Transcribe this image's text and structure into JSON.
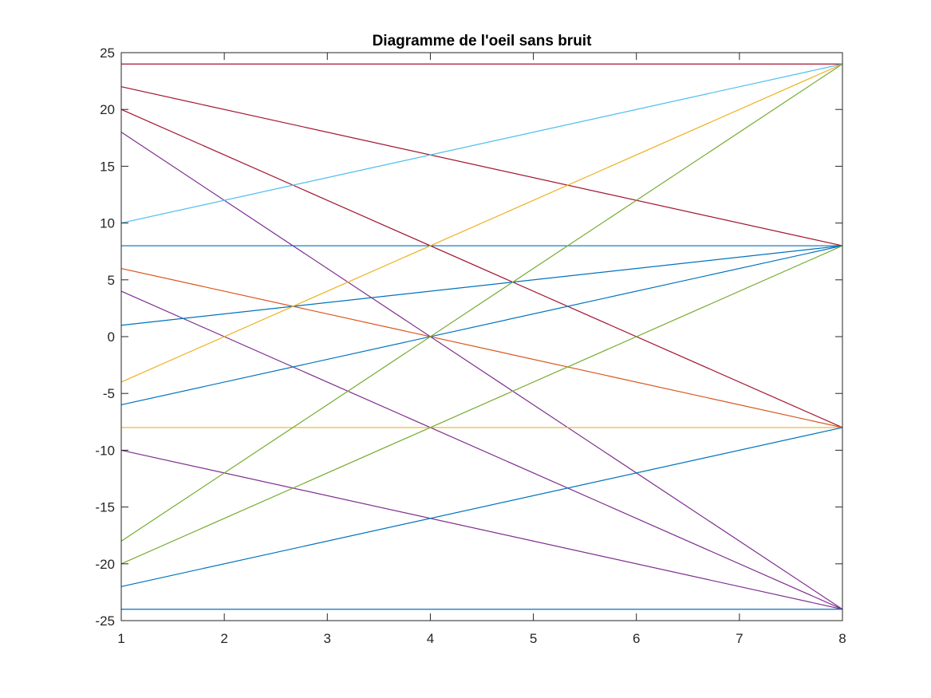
{
  "chart_data": {
    "type": "line",
    "title": "Diagramme de l'oeil sans bruit",
    "xlabel": "",
    "ylabel": "",
    "xlim": [
      1,
      8
    ],
    "ylim": [
      -25,
      25
    ],
    "xticks": [
      1,
      2,
      3,
      4,
      5,
      6,
      7,
      8
    ],
    "yticks": [
      25,
      20,
      15,
      10,
      5,
      0,
      -5,
      -10,
      -15,
      -20,
      -25
    ],
    "grid": false,
    "legend": "none",
    "series": [
      {
        "x": [
          1,
          8
        ],
        "y": [
          24,
          24
        ],
        "color": "#A2142F"
      },
      {
        "x": [
          1,
          8
        ],
        "y": [
          22,
          8
        ],
        "color": "#A2142F"
      },
      {
        "x": [
          1,
          8
        ],
        "y": [
          20,
          -8
        ],
        "color": "#A2142F"
      },
      {
        "x": [
          1,
          8
        ],
        "y": [
          18,
          -24
        ],
        "color": "#7E2F8E"
      },
      {
        "x": [
          1,
          8
        ],
        "y": [
          10,
          24
        ],
        "color": "#4DBEEE"
      },
      {
        "x": [
          1,
          8
        ],
        "y": [
          8,
          8
        ],
        "color": "#0072BD"
      },
      {
        "x": [
          1,
          8
        ],
        "y": [
          6,
          -8
        ],
        "color": "#D95319"
      },
      {
        "x": [
          1,
          8
        ],
        "y": [
          4,
          -24
        ],
        "color": "#7E2F8E"
      },
      {
        "x": [
          1,
          8
        ],
        "y": [
          1,
          8
        ],
        "color": "#0072BD"
      },
      {
        "x": [
          1,
          8
        ],
        "y": [
          -4,
          24
        ],
        "color": "#EDB120"
      },
      {
        "x": [
          1,
          8
        ],
        "y": [
          -6,
          8
        ],
        "color": "#0072BD"
      },
      {
        "x": [
          1,
          8
        ],
        "y": [
          -8,
          -8
        ],
        "color": "#EDB120"
      },
      {
        "x": [
          1,
          8
        ],
        "y": [
          -10,
          -24
        ],
        "color": "#7E2F8E"
      },
      {
        "x": [
          1,
          8
        ],
        "y": [
          -18,
          24
        ],
        "color": "#77AC30"
      },
      {
        "x": [
          1,
          8
        ],
        "y": [
          -20,
          8
        ],
        "color": "#77AC30"
      },
      {
        "x": [
          1,
          8
        ],
        "y": [
          -22,
          -8
        ],
        "color": "#0072BD"
      },
      {
        "x": [
          1,
          8
        ],
        "y": [
          -24,
          -24
        ],
        "color": "#0072BD"
      }
    ]
  }
}
